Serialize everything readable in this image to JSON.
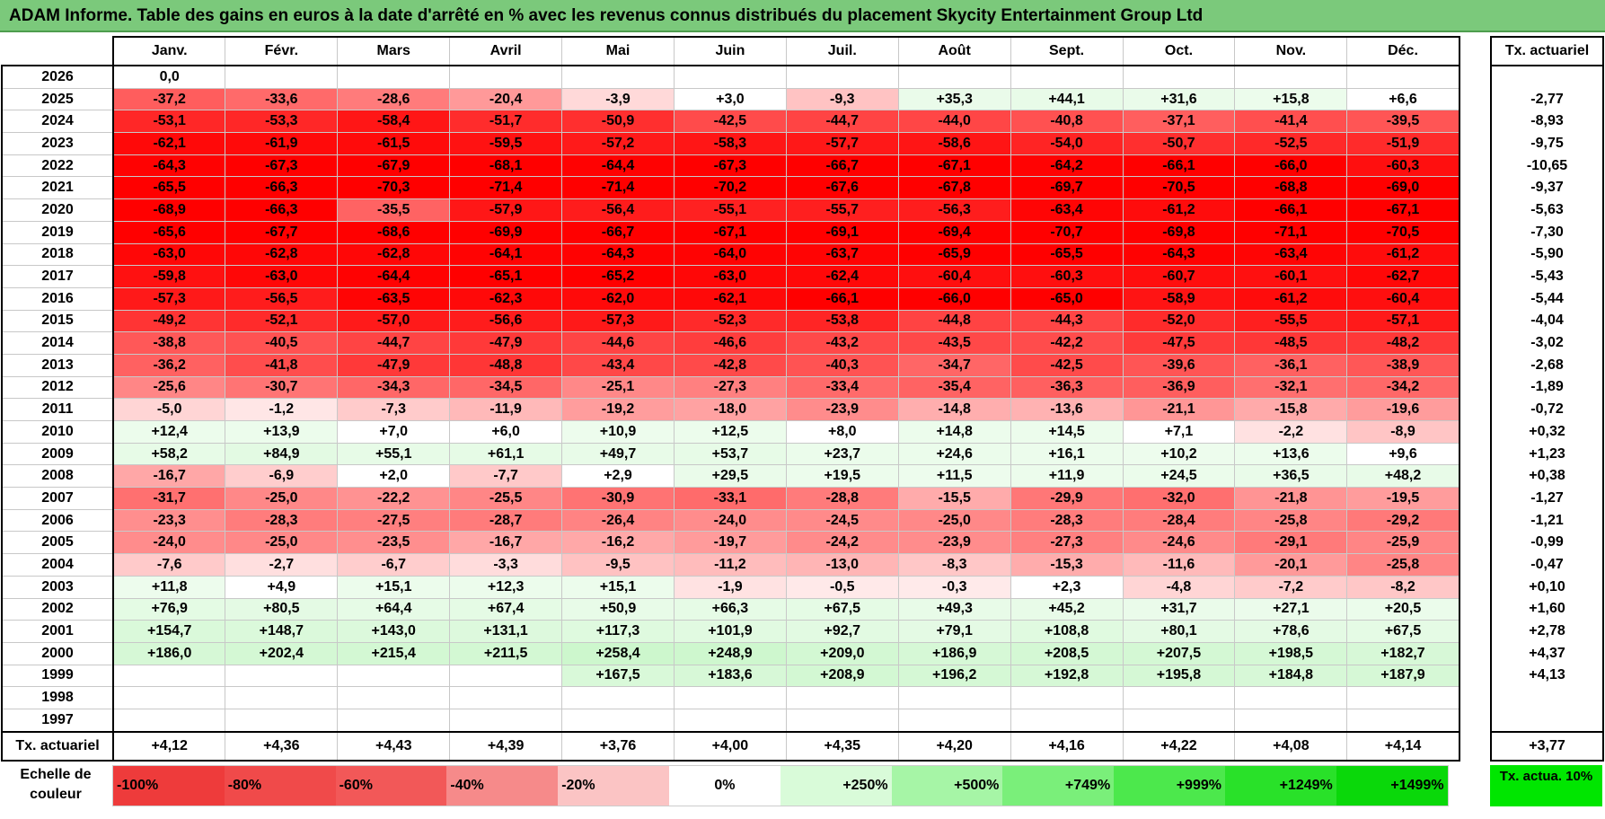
{
  "title": "ADAM Informe. Table des gains en euros à la date d'arrêté en % avec les revenus connus distribués du placement Skycity Entertainment Group Ltd",
  "months": [
    "Janv.",
    "Févr.",
    "Mars",
    "Avril",
    "Mai",
    "Juin",
    "Juil.",
    "Août",
    "Sept.",
    "Oct.",
    "Nov.",
    "Déc."
  ],
  "actuarial_header": "Tx. actuariel",
  "rows": [
    {
      "year": "2026",
      "values": [
        "0,0",
        "",
        "",
        "",
        "",
        "",
        "",
        "",
        "",
        "",
        "",
        ""
      ],
      "actuarial": ""
    },
    {
      "year": "2025",
      "values": [
        "-37,2",
        "-33,6",
        "-28,6",
        "-20,4",
        "-3,9",
        "+3,0",
        "-9,3",
        "+35,3",
        "+44,1",
        "+31,6",
        "+15,8",
        "+6,6"
      ],
      "actuarial": "-2,77"
    },
    {
      "year": "2024",
      "values": [
        "-53,1",
        "-53,3",
        "-58,4",
        "-51,7",
        "-50,9",
        "-42,5",
        "-44,7",
        "-44,0",
        "-40,8",
        "-37,1",
        "-41,4",
        "-39,5"
      ],
      "actuarial": "-8,93"
    },
    {
      "year": "2023",
      "values": [
        "-62,1",
        "-61,9",
        "-61,5",
        "-59,5",
        "-57,2",
        "-58,3",
        "-57,7",
        "-58,6",
        "-54,0",
        "-50,7",
        "-52,5",
        "-51,9"
      ],
      "actuarial": "-9,75"
    },
    {
      "year": "2022",
      "values": [
        "-64,3",
        "-67,3",
        "-67,9",
        "-68,1",
        "-64,4",
        "-67,3",
        "-66,7",
        "-67,1",
        "-64,2",
        "-66,1",
        "-66,0",
        "-60,3"
      ],
      "actuarial": "-10,65"
    },
    {
      "year": "2021",
      "values": [
        "-65,5",
        "-66,3",
        "-70,3",
        "-71,4",
        "-71,4",
        "-70,2",
        "-67,6",
        "-67,8",
        "-69,7",
        "-70,5",
        "-68,8",
        "-69,0"
      ],
      "actuarial": "-9,37"
    },
    {
      "year": "2020",
      "values": [
        "-68,9",
        "-66,3",
        "-35,5",
        "-57,9",
        "-56,4",
        "-55,1",
        "-55,7",
        "-56,3",
        "-63,4",
        "-61,2",
        "-66,1",
        "-67,1"
      ],
      "actuarial": "-5,63"
    },
    {
      "year": "2019",
      "values": [
        "-65,6",
        "-67,7",
        "-68,6",
        "-69,9",
        "-66,7",
        "-67,1",
        "-69,1",
        "-69,4",
        "-70,7",
        "-69,8",
        "-71,1",
        "-70,5"
      ],
      "actuarial": "-7,30"
    },
    {
      "year": "2018",
      "values": [
        "-63,0",
        "-62,8",
        "-62,8",
        "-64,1",
        "-64,3",
        "-64,0",
        "-63,7",
        "-65,9",
        "-65,5",
        "-64,3",
        "-63,4",
        "-61,2"
      ],
      "actuarial": "-5,90"
    },
    {
      "year": "2017",
      "values": [
        "-59,8",
        "-63,0",
        "-64,4",
        "-65,1",
        "-65,2",
        "-63,0",
        "-62,4",
        "-60,4",
        "-60,3",
        "-60,7",
        "-60,1",
        "-62,7"
      ],
      "actuarial": "-5,43"
    },
    {
      "year": "2016",
      "values": [
        "-57,3",
        "-56,5",
        "-63,5",
        "-62,3",
        "-62,0",
        "-62,1",
        "-66,1",
        "-66,0",
        "-65,0",
        "-58,9",
        "-61,2",
        "-60,4"
      ],
      "actuarial": "-5,44"
    },
    {
      "year": "2015",
      "values": [
        "-49,2",
        "-52,1",
        "-57,0",
        "-56,6",
        "-57,3",
        "-52,3",
        "-53,8",
        "-44,8",
        "-44,3",
        "-52,0",
        "-55,5",
        "-57,1"
      ],
      "actuarial": "-4,04"
    },
    {
      "year": "2014",
      "values": [
        "-38,8",
        "-40,5",
        "-44,7",
        "-47,9",
        "-44,6",
        "-46,6",
        "-43,2",
        "-43,5",
        "-42,2",
        "-47,5",
        "-48,5",
        "-48,2"
      ],
      "actuarial": "-3,02"
    },
    {
      "year": "2013",
      "values": [
        "-36,2",
        "-41,8",
        "-47,9",
        "-48,8",
        "-43,4",
        "-42,8",
        "-40,3",
        "-34,7",
        "-42,5",
        "-39,6",
        "-36,1",
        "-38,9"
      ],
      "actuarial": "-2,68"
    },
    {
      "year": "2012",
      "values": [
        "-25,6",
        "-30,7",
        "-34,3",
        "-34,5",
        "-25,1",
        "-27,3",
        "-33,4",
        "-35,4",
        "-36,3",
        "-36,9",
        "-32,1",
        "-34,2"
      ],
      "actuarial": "-1,89"
    },
    {
      "year": "2011",
      "values": [
        "-5,0",
        "-1,2",
        "-7,3",
        "-11,9",
        "-19,2",
        "-18,0",
        "-23,9",
        "-14,8",
        "-13,6",
        "-21,1",
        "-15,8",
        "-19,6"
      ],
      "actuarial": "-0,72"
    },
    {
      "year": "2010",
      "values": [
        "+12,4",
        "+13,9",
        "+7,0",
        "+6,0",
        "+10,9",
        "+12,5",
        "+8,0",
        "+14,8",
        "+14,5",
        "+7,1",
        "-2,2",
        "-8,9"
      ],
      "actuarial": "+0,32"
    },
    {
      "year": "2009",
      "values": [
        "+58,2",
        "+84,9",
        "+55,1",
        "+61,1",
        "+49,7",
        "+53,7",
        "+23,7",
        "+24,6",
        "+16,1",
        "+10,2",
        "+13,6",
        "+9,6"
      ],
      "actuarial": "+1,23"
    },
    {
      "year": "2008",
      "values": [
        "-16,7",
        "-6,9",
        "+2,0",
        "-7,7",
        "+2,9",
        "+29,5",
        "+19,5",
        "+11,5",
        "+11,9",
        "+24,5",
        "+36,5",
        "+48,2"
      ],
      "actuarial": "+0,38"
    },
    {
      "year": "2007",
      "values": [
        "-31,7",
        "-25,0",
        "-22,2",
        "-25,5",
        "-30,9",
        "-33,1",
        "-28,8",
        "-15,5",
        "-29,9",
        "-32,0",
        "-21,8",
        "-19,5"
      ],
      "actuarial": "-1,27"
    },
    {
      "year": "2006",
      "values": [
        "-23,3",
        "-28,3",
        "-27,5",
        "-28,7",
        "-26,4",
        "-24,0",
        "-24,5",
        "-25,0",
        "-28,3",
        "-28,4",
        "-25,8",
        "-29,2"
      ],
      "actuarial": "-1,21"
    },
    {
      "year": "2005",
      "values": [
        "-24,0",
        "-25,0",
        "-23,5",
        "-16,7",
        "-16,2",
        "-19,7",
        "-24,2",
        "-23,9",
        "-27,3",
        "-24,6",
        "-29,1",
        "-25,9"
      ],
      "actuarial": "-0,99"
    },
    {
      "year": "2004",
      "values": [
        "-7,6",
        "-2,7",
        "-6,7",
        "-3,3",
        "-9,5",
        "-11,2",
        "-13,0",
        "-8,3",
        "-15,3",
        "-11,6",
        "-20,1",
        "-25,8"
      ],
      "actuarial": "-0,47"
    },
    {
      "year": "2003",
      "values": [
        "+11,8",
        "+4,9",
        "+15,1",
        "+12,3",
        "+15,1",
        "-1,9",
        "-0,5",
        "-0,3",
        "+2,3",
        "-4,8",
        "-7,2",
        "-8,2"
      ],
      "actuarial": "+0,10"
    },
    {
      "year": "2002",
      "values": [
        "+76,9",
        "+80,5",
        "+64,4",
        "+67,4",
        "+50,9",
        "+66,3",
        "+67,5",
        "+49,3",
        "+45,2",
        "+31,7",
        "+27,1",
        "+20,5"
      ],
      "actuarial": "+1,60"
    },
    {
      "year": "2001",
      "values": [
        "+154,7",
        "+148,7",
        "+143,0",
        "+131,1",
        "+117,3",
        "+101,9",
        "+92,7",
        "+79,1",
        "+108,8",
        "+80,1",
        "+78,6",
        "+67,5"
      ],
      "actuarial": "+2,78"
    },
    {
      "year": "2000",
      "values": [
        "+186,0",
        "+202,4",
        "+215,4",
        "+211,5",
        "+258,4",
        "+248,9",
        "+209,0",
        "+186,9",
        "+208,5",
        "+207,5",
        "+198,5",
        "+182,7"
      ],
      "actuarial": "+4,37"
    },
    {
      "year": "1999",
      "values": [
        "",
        "",
        "",
        "",
        "+167,5",
        "+183,6",
        "+208,9",
        "+196,2",
        "+192,8",
        "+195,8",
        "+184,8",
        "+187,9"
      ],
      "actuarial": "+4,13"
    },
    {
      "year": "1998",
      "values": [
        "",
        "",
        "",
        "",
        "",
        "",
        "",
        "",
        "",
        "",
        "",
        ""
      ],
      "actuarial": ""
    },
    {
      "year": "1997",
      "values": [
        "",
        "",
        "",
        "",
        "",
        "",
        "",
        "",
        "",
        "",
        "",
        ""
      ],
      "actuarial": ""
    }
  ],
  "footer": {
    "label": "Tx. actuariel",
    "values": [
      "+4,12",
      "+4,36",
      "+4,43",
      "+4,39",
      "+3,76",
      "+4,00",
      "+4,35",
      "+4,20",
      "+4,16",
      "+4,22",
      "+4,08",
      "+4,14"
    ],
    "actuarial": "+3,77"
  },
  "legend": {
    "label": "Echelle de couleur",
    "scale": [
      {
        "text": "-100%",
        "color": "#ee3b3b",
        "kind": "neg"
      },
      {
        "text": "-80%",
        "color": "#f04a4a",
        "kind": "neg"
      },
      {
        "text": "-60%",
        "color": "#f25858",
        "kind": "neg"
      },
      {
        "text": "-40%",
        "color": "#f68a8a",
        "kind": "neg"
      },
      {
        "text": "-20%",
        "color": "#fbc4c4",
        "kind": "neg"
      },
      {
        "text": "0%",
        "color": "#ffffff",
        "kind": "zero"
      },
      {
        "text": "+250%",
        "color": "#d9fbd9",
        "kind": "pos"
      },
      {
        "text": "+500%",
        "color": "#a6f5a6",
        "kind": "pos"
      },
      {
        "text": "+749%",
        "color": "#7aef7a",
        "kind": "pos"
      },
      {
        "text": "+999%",
        "color": "#4ce84c",
        "kind": "pos"
      },
      {
        "text": "+1249%",
        "color": "#29e129",
        "kind": "pos"
      },
      {
        "text": "+1499%",
        "color": "#0ad80a",
        "kind": "pos"
      }
    ],
    "actuarial_label": "Tx. actua. 10%",
    "actuarial_color": "#00e600"
  },
  "colors": {
    "title_bg": "#7bc97b",
    "neg_max": "#ff0000",
    "neg_min": "#ffecec",
    "pos_light": "#eefcee",
    "pos_max": "#cdf7cd"
  }
}
